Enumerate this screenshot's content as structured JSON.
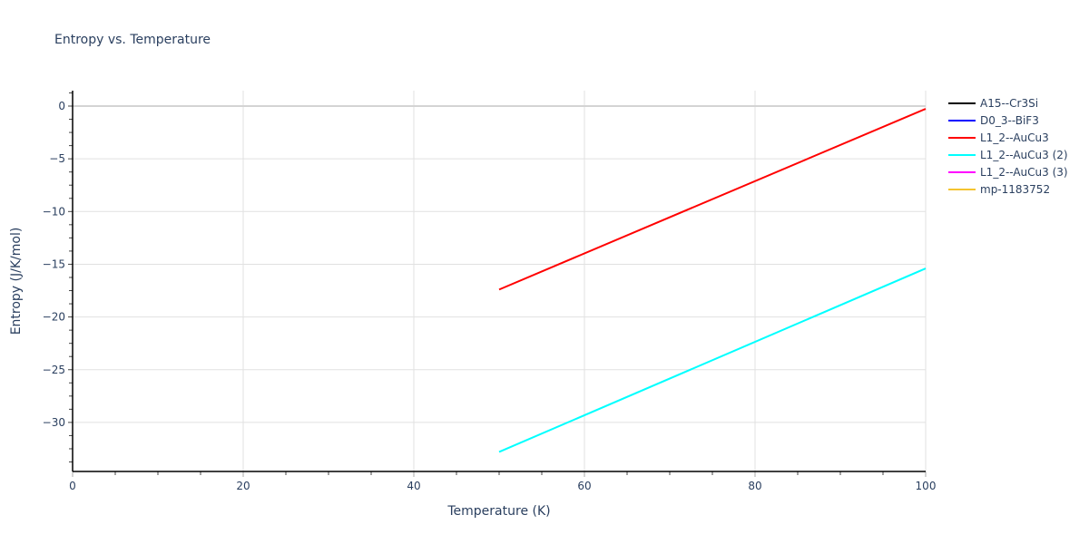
{
  "chart_data": {
    "type": "line",
    "title": "Entropy vs. Temperature",
    "xlabel": "Temperature (K)",
    "ylabel": "Entropy (J/K/mol)",
    "xlim": [
      0,
      100
    ],
    "ylim": [
      -34.6,
      1.5
    ],
    "x_ticks": [
      0,
      20,
      40,
      60,
      80,
      100
    ],
    "y_ticks": [
      0,
      -5,
      -10,
      -15,
      -20,
      -25,
      -30
    ],
    "grid": true,
    "legend_position": "right",
    "series": [
      {
        "name": "A15--Cr3Si",
        "color": "#000000",
        "x": [],
        "y": []
      },
      {
        "name": "D0_3--BiF3",
        "color": "#0000ff",
        "x": [],
        "y": []
      },
      {
        "name": "L1_2--AuCu3",
        "color": "#ff0000",
        "x": [
          50,
          100
        ],
        "y": [
          -17.4,
          -0.26
        ]
      },
      {
        "name": "L1_2--AuCu3 (2)",
        "color": "#00ffff",
        "x": [
          50,
          100
        ],
        "y": [
          -32.8,
          -15.4
        ]
      },
      {
        "name": "L1_2--AuCu3 (3)",
        "color": "#ff00ff",
        "x": [],
        "y": []
      },
      {
        "name": "mp-1183752",
        "color": "#f4c430",
        "x": [],
        "y": []
      }
    ]
  },
  "labels": {
    "x_ticks": [
      "0",
      "20",
      "40",
      "60",
      "80",
      "100"
    ],
    "y_ticks": [
      "0",
      "−5",
      "−10",
      "−15",
      "−20",
      "−25",
      "−30"
    ]
  }
}
